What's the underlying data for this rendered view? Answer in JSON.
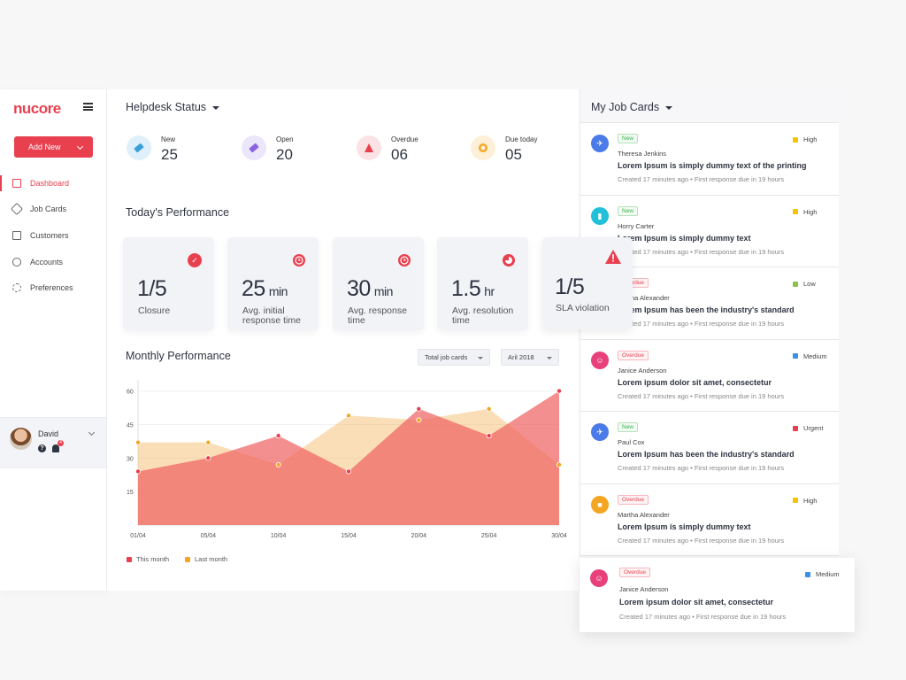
{
  "sidebar": {
    "logo": "nucore",
    "add_button": "Add New",
    "items": [
      {
        "label": "Dashboard",
        "active": true
      },
      {
        "label": "Job Cards"
      },
      {
        "label": "Customers"
      },
      {
        "label": "Accounts"
      },
      {
        "label": "Preferences"
      }
    ],
    "user": {
      "name": "David",
      "help_glyph": "?",
      "notifications": "4"
    }
  },
  "helpdesk": {
    "title": "Helpdesk Status",
    "stats": [
      {
        "label": "New",
        "value": "25",
        "color": "#dff0fa",
        "icon_color": "#3aa0dc"
      },
      {
        "label": "Open",
        "value": "20",
        "color": "#ece6fb",
        "icon_color": "#8a64e0"
      },
      {
        "label": "Overdue",
        "value": "06",
        "color": "#fbe3e5",
        "icon_color": "#e8404f"
      },
      {
        "label": "Due today",
        "value": "05",
        "color": "#fdf0d6",
        "icon_color": "#f4a623"
      }
    ]
  },
  "performance": {
    "title": "Today's Performance",
    "cards": [
      {
        "value": "1/5",
        "unit": "",
        "label": "Closure",
        "icon": "check-icon"
      },
      {
        "value": "25",
        "unit": "min",
        "label": "Avg. initial response time",
        "icon": "clock-icon"
      },
      {
        "value": "30",
        "unit": "min",
        "label": "Avg. response time",
        "icon": "clock-icon"
      },
      {
        "value": "1.5",
        "unit": "hr",
        "label": "Avg. resolution time",
        "icon": "pie-icon"
      },
      {
        "value": "1/5",
        "unit": "",
        "label": "SLA violation",
        "icon": "warning-icon"
      }
    ]
  },
  "monthly": {
    "title": "Monthly Performance",
    "filter1": "Total job cards",
    "filter2": "Aril 2018"
  },
  "chart_data": {
    "type": "area",
    "categories": [
      "01/04",
      "05/04",
      "10/04",
      "15/04",
      "20/04",
      "25/04",
      "30/04"
    ],
    "y_ticks": [
      "60",
      "45",
      "30",
      "15"
    ],
    "ylim": [
      0,
      65
    ],
    "series": [
      {
        "name": "This month",
        "color": "#f27a7a",
        "values": [
          24,
          30,
          40,
          24,
          52,
          40,
          60
        ]
      },
      {
        "name": "Last month",
        "color": "#f5c27d",
        "values": [
          37,
          37,
          27,
          49,
          47,
          52,
          27
        ]
      }
    ],
    "legend": "bottom-left",
    "grid": true
  },
  "jobs": {
    "title": "My Job Cards",
    "cards": [
      {
        "status": "New",
        "priority": "High",
        "person": "Theresa Jenkins",
        "title": "Lorem Ipsum is simply dummy text of the printing",
        "meta": "Created 17 minutes ago  •  First response due in 19 hours",
        "icon_color": "#4b7be8",
        "icon": "airplane-icon",
        "glyph": "✈",
        "prio_color": "#f5c400",
        "status_color": "#38b24a"
      },
      {
        "status": "New",
        "priority": "High",
        "person": "Horry Carter",
        "title": "Lorem Ipsum is simply dummy text",
        "meta": "Created 17 minutes ago  •  First response due in 19 hours",
        "icon_color": "#20c0d8",
        "icon": "building-icon",
        "glyph": "▮",
        "prio_color": "#f5c400",
        "status_color": "#38b24a"
      },
      {
        "status": "Overdue",
        "priority": "Low",
        "person": "Martha Alexander",
        "title": "Lorem Ipsum has been the industry's standard",
        "meta": "Created 17 minutes ago  •  First response due in 19 hours",
        "icon_color": "#e8404f",
        "icon": "chat-icon",
        "glyph": "☺",
        "prio_color": "#8bc34a",
        "status_color": "#e8404f"
      },
      {
        "status": "Overdue",
        "priority": "Medium",
        "person": "Janice Anderson",
        "title": "Lorem ipsum dolor sit amet, consectetur",
        "meta": "Created 17 minutes ago  •  First response due in 19 hours",
        "icon_color": "#e8407a",
        "icon": "chat-icon",
        "glyph": "☺",
        "prio_color": "#3a90e8",
        "status_color": "#e8404f"
      },
      {
        "status": "New",
        "priority": "Urgent",
        "person": "Paul Cox",
        "title": "Lorem Ipsum has been the industry's standard",
        "meta": "Created 17 minutes ago  •  First response due in 19 hours",
        "icon_color": "#4b7be8",
        "icon": "airplane-icon",
        "glyph": "✈",
        "prio_color": "#e8404f",
        "status_color": "#38b24a"
      },
      {
        "status": "Overdue",
        "priority": "High",
        "person": "Martha Alexander",
        "title": "Lorem Ipsum is simply dummy text",
        "meta": "Created 17 minutes ago  •  First response due in 19 hours",
        "icon_color": "#f4a623",
        "icon": "bus-icon",
        "glyph": "■",
        "prio_color": "#f5c400",
        "status_color": "#e8404f"
      }
    ],
    "floating": {
      "status": "Overdue",
      "priority": "Medium",
      "person": "Janice Anderson",
      "title": "Lorem ipsum dolor sit amet, consectetur",
      "meta": "Created 17 minutes ago  •  First response due in 19 hours",
      "icon_color": "#e8407a",
      "icon": "chat-icon",
      "glyph": "☺",
      "prio_color": "#3a90e8",
      "status_color": "#e8404f"
    }
  }
}
